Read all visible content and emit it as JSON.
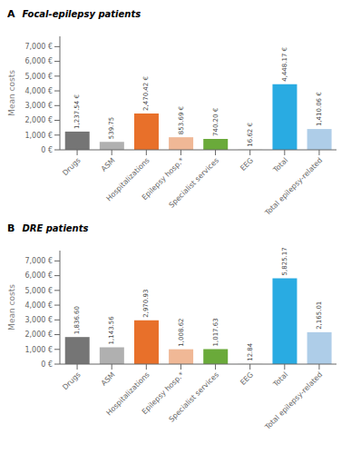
{
  "chart_data": [
    {
      "type": "bar",
      "title": "Focal-epilepsy patients",
      "annotations": [
        "A"
      ],
      "ylabel": "Mean costs",
      "categories": [
        "Drugs",
        "ASM",
        "Hospitalizations",
        "Epilepsy hosp.*",
        "Specialist services",
        "EEG",
        "Total",
        "Total epilepsy-related"
      ],
      "values": [
        1237.54,
        539.75,
        2470.42,
        853.69,
        740.2,
        16.62,
        4448.17,
        1410.06
      ],
      "value_labels": [
        "1,237.54 €",
        "539.75",
        "2,470.42 €",
        "853.69 €",
        "740.20 €",
        "16.62 €",
        "4,448.17 €",
        "1,410.06 €"
      ],
      "data_labels": true,
      "grid": false,
      "colors": [
        "#757575",
        "#b0b0b0",
        "#e8702a",
        "#f0b896",
        "#6aaa3a",
        "#d0d0c8",
        "#29abe2",
        "#aecde8"
      ],
      "ylim": [
        0,
        7700
      ],
      "yticks": [
        {
          "value": 0,
          "label": "0 €"
        },
        {
          "value": 1000,
          "label": "1,000 €"
        },
        {
          "value": 2000,
          "label": "2,000 €"
        },
        {
          "value": 3000,
          "label": "3,000 €"
        },
        {
          "value": 4000,
          "label": "4,000 €"
        },
        {
          "value": 5000,
          "label": "5,000 €"
        },
        {
          "value": 6000,
          "label": "6,000 €"
        },
        {
          "value": 7000,
          "label": "7,000 €"
        }
      ]
    },
    {
      "type": "bar",
      "title": "DRE patients",
      "annotations": [
        "B"
      ],
      "ylabel": "Mean costs",
      "categories": [
        "Drugs",
        "ASM",
        "Hospitalizations",
        "Epilepsy hosp.*",
        "Specialist services",
        "EEG",
        "Total",
        "Total epilepsy-related"
      ],
      "values": [
        1836.6,
        1143.56,
        2970.93,
        1008.62,
        1017.63,
        12.84,
        5825.17,
        2165.01
      ],
      "value_labels": [
        "1,836.60",
        "1,143.56",
        "2,970.93",
        "1,008.62",
        "1,017.63",
        "12.84",
        "5,825.17",
        "2,165.01"
      ],
      "data_labels": true,
      "grid": false,
      "colors": [
        "#757575",
        "#b0b0b0",
        "#e8702a",
        "#f0b896",
        "#6aaa3a",
        "#d0d0c8",
        "#29abe2",
        "#aecde8"
      ],
      "ylim": [
        0,
        7700
      ],
      "yticks": [
        {
          "value": 0,
          "label": "0 €"
        },
        {
          "value": 1000,
          "label": "1,000 €"
        },
        {
          "value": 2000,
          "label": "2,000 €"
        },
        {
          "value": 3000,
          "label": "3,000 €"
        },
        {
          "value": 4000,
          "label": "4,000 €"
        },
        {
          "value": 5000,
          "label": "5,000 €"
        },
        {
          "value": 6000,
          "label": "6,000 €"
        },
        {
          "value": 7000,
          "label": "7,000 €"
        }
      ]
    }
  ]
}
